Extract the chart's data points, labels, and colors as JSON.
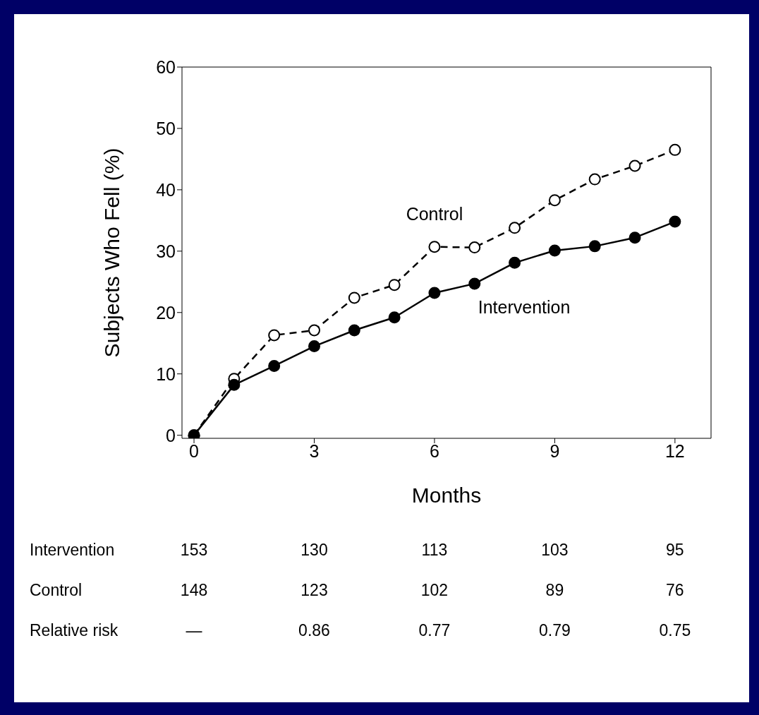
{
  "chart_data": {
    "type": "line",
    "xlabel": "Months",
    "ylabel": "Subjects Who Fell (%)",
    "x": [
      0,
      1,
      2,
      3,
      4,
      5,
      6,
      7,
      8,
      9,
      10,
      11,
      12
    ],
    "series": [
      {
        "name": "Control",
        "color": "#000000",
        "line_style": "dashed",
        "values": [
          0,
          9.2,
          16.3,
          17.1,
          22.4,
          24.5,
          30.7,
          30.6,
          33.8,
          38.3,
          41.7,
          43.9,
          46.5
        ]
      },
      {
        "name": "Intervention",
        "color": "#000000",
        "line_style": "solid",
        "values": [
          0,
          8.2,
          11.3,
          14.5,
          17.1,
          19.2,
          23.2,
          24.7,
          28.1,
          30.1,
          30.8,
          32.2,
          34.8
        ]
      }
    ],
    "xlim": [
      -0.3,
      12.9
    ],
    "ylim": [
      -0.5,
      60
    ],
    "xticks": [
      0,
      3,
      6,
      9,
      12
    ],
    "yticks": [
      0,
      10,
      20,
      30,
      40,
      50,
      60
    ],
    "marker": "circle",
    "grid": false,
    "legend": false,
    "annotations": [
      "Intervention",
      "153",
      "130",
      "113",
      "103",
      "95",
      "Control",
      "148",
      "123",
      "102",
      "89",
      "76",
      "Relative risk",
      "—",
      "0.86",
      "0.77",
      "0.79",
      "0.75"
    ]
  }
}
